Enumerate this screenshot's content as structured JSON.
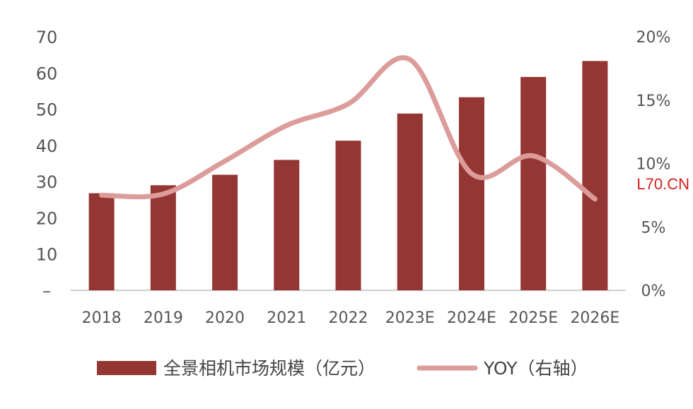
{
  "chart_data": {
    "type": "bar",
    "categories": [
      "2018",
      "2019",
      "2020",
      "2021",
      "2022",
      "2023E",
      "2024E",
      "2025E",
      "2026E"
    ],
    "series": [
      {
        "name": "全景相机市场规模（亿元）",
        "type": "bar",
        "axis": "left",
        "values": [
          26.8,
          29.0,
          31.9,
          36.0,
          41.3,
          48.8,
          53.3,
          58.9,
          63.3
        ],
        "color": "#943634"
      },
      {
        "name": "YOY（右轴）",
        "type": "line",
        "axis": "right",
        "values": [
          7.5,
          7.6,
          10.2,
          13.0,
          14.7,
          18.2,
          9.2,
          10.6,
          7.2
        ],
        "color": "#dc9c9a"
      }
    ],
    "y_left": {
      "min": 0,
      "max": 70,
      "ticks": [
        0,
        10,
        20,
        30,
        40,
        50,
        60,
        70
      ],
      "tick_labels": [
        "–",
        "10",
        "20",
        "30",
        "40",
        "50",
        "60",
        "70"
      ]
    },
    "y_right": {
      "min": 0,
      "max": 20,
      "ticks": [
        0,
        5,
        10,
        15,
        20
      ],
      "tick_labels": [
        "0%",
        "5%",
        "10%",
        "15%",
        "20%"
      ]
    },
    "grid": false,
    "legend_position": "bottom",
    "watermark": "L70.CN",
    "watermark_color": "#d42020",
    "axis_color": "#bfbfbf"
  }
}
